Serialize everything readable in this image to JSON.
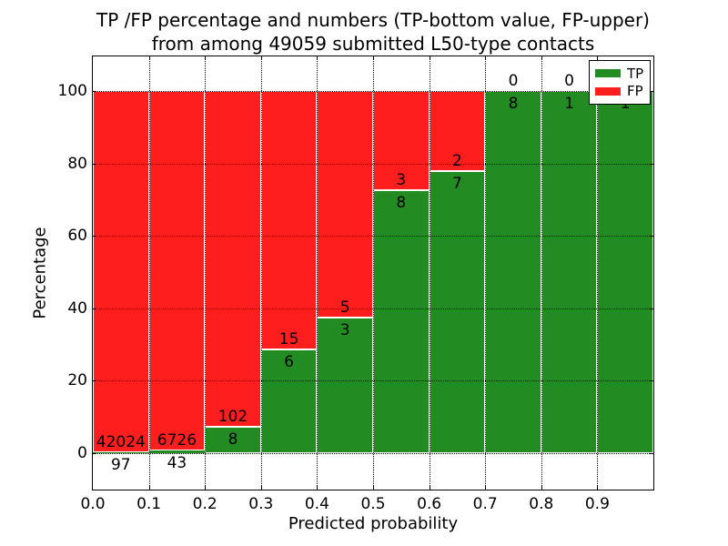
{
  "title": {
    "line1": "TP /FP percentage and numbers (TP-bottom value, FP-upper)",
    "line2": "from among 49059 submitted L50-type contacts"
  },
  "axes": {
    "xlabel": "Predicted probability",
    "ylabel": "Percentage"
  },
  "chart_data": {
    "type": "bar",
    "stacked": true,
    "orientation": "vertical",
    "title": "TP /FP percentage and numbers (TP-bottom value, FP-upper) from among 49059 submitted L50-type contacts",
    "xlabel": "Predicted probability",
    "ylabel": "Percentage",
    "total_contacts": 49059,
    "grid": "dotted",
    "x_tick_labels": [
      "0.0",
      "0.1",
      "0.2",
      "0.3",
      "0.4",
      "0.5",
      "0.6",
      "0.7",
      "0.8",
      "0.9"
    ],
    "y_ticks": [
      0,
      20,
      40,
      60,
      80,
      100
    ],
    "xlim": [
      0.0,
      1.0
    ],
    "ylim_display": [
      -10,
      110
    ],
    "legend": {
      "position": "upper right",
      "items": [
        {
          "label": "TP",
          "color": "#228B22"
        },
        {
          "label": "FP",
          "color": "#FF1E1E"
        }
      ]
    },
    "bars": [
      {
        "bin": "0.0-0.1",
        "tp": 97,
        "fp": 42024,
        "tp_pct": 0.23
      },
      {
        "bin": "0.1-0.2",
        "tp": 43,
        "fp": 6726,
        "tp_pct": 0.64
      },
      {
        "bin": "0.2-0.3",
        "tp": 8,
        "fp": 102,
        "tp_pct": 7.27
      },
      {
        "bin": "0.3-0.4",
        "tp": 6,
        "fp": 15,
        "tp_pct": 28.57
      },
      {
        "bin": "0.4-0.5",
        "tp": 3,
        "fp": 5,
        "tp_pct": 37.5
      },
      {
        "bin": "0.5-0.6",
        "tp": 8,
        "fp": 3,
        "tp_pct": 72.73
      },
      {
        "bin": "0.6-0.7",
        "tp": 7,
        "fp": 2,
        "tp_pct": 77.78
      },
      {
        "bin": "0.7-0.8",
        "tp": 8,
        "fp": 0,
        "tp_pct": 100
      },
      {
        "bin": "0.8-0.9",
        "tp": 1,
        "fp": 0,
        "tp_pct": 100
      },
      {
        "bin": "0.9-1.0",
        "tp": 1,
        "fp": 0,
        "tp_pct": 100
      }
    ]
  }
}
